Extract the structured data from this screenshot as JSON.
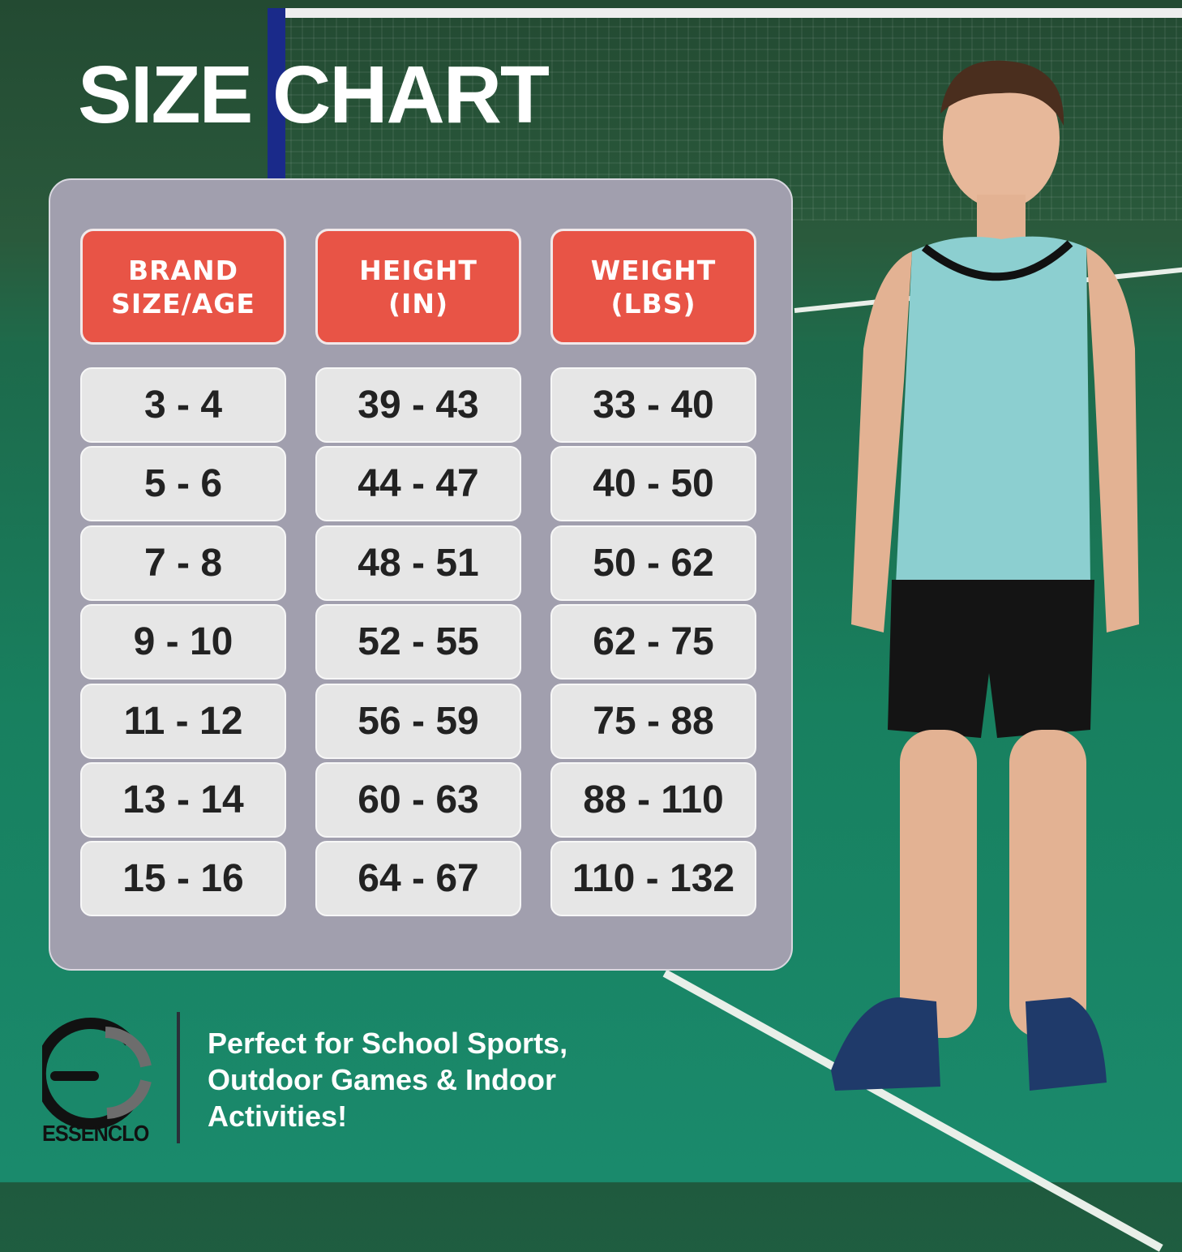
{
  "title": "SIZE CHART",
  "headers": [
    {
      "line1": "BRAND",
      "line2": "SIZE/AGE"
    },
    {
      "line1": "HEIGHT",
      "line2": "(IN)"
    },
    {
      "line1": "WEIGHT",
      "line2": "(LBS)"
    }
  ],
  "rows": [
    [
      "3 - 4",
      "39 - 43",
      "33 - 40"
    ],
    [
      "5 - 6",
      "44 - 47",
      "40 - 50"
    ],
    [
      "7 - 8",
      "48 - 51",
      "50 - 62"
    ],
    [
      "9 - 10",
      "52 - 55",
      "62 - 75"
    ],
    [
      "11 - 12",
      "56 - 59",
      "75 - 88"
    ],
    [
      "13 - 14",
      "60 - 63",
      "88 - 110"
    ],
    [
      "15 - 16",
      "64 - 67",
      "110 - 132"
    ]
  ],
  "brand": {
    "name": "ESSENCLO"
  },
  "tagline": [
    "Perfect for School Sports,",
    "Outdoor Games & Indoor",
    "Activities!"
  ],
  "colors": {
    "header": "#e85446",
    "panel": "#a19fae",
    "cell": "#e6e6e6",
    "background": "#1a7a5a"
  }
}
